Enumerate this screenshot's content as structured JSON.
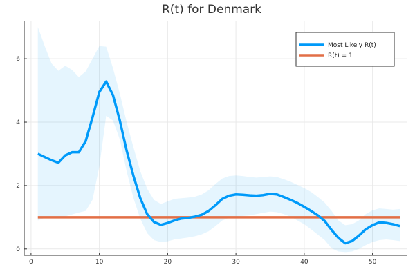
{
  "chart_data": {
    "type": "line",
    "title": "R(t) for Denmark",
    "xlabel": "",
    "ylabel": "",
    "xlim": [
      -1,
      55
    ],
    "ylim": [
      -0.2,
      7.2
    ],
    "xticks": [
      0,
      10,
      20,
      30,
      40,
      50
    ],
    "yticks": [
      0,
      2,
      4,
      6
    ],
    "grid": true,
    "legend_position": "top-right",
    "x": [
      1,
      2,
      3,
      4,
      5,
      6,
      7,
      8,
      9,
      10,
      11,
      12,
      13,
      14,
      15,
      16,
      17,
      18,
      19,
      20,
      21,
      22,
      23,
      24,
      25,
      26,
      27,
      28,
      29,
      30,
      31,
      32,
      33,
      34,
      35,
      36,
      37,
      38,
      39,
      40,
      41,
      42,
      43,
      44,
      45,
      46,
      47,
      48,
      49,
      50,
      51,
      52,
      53,
      54
    ],
    "series": [
      {
        "name": "Most Likely R(t)",
        "color": "#009af9",
        "y": [
          3.0,
          2.9,
          2.8,
          2.72,
          2.95,
          3.05,
          3.05,
          3.4,
          4.15,
          4.95,
          5.28,
          4.85,
          4.05,
          3.1,
          2.3,
          1.6,
          1.1,
          0.85,
          0.76,
          0.82,
          0.9,
          0.96,
          0.98,
          1.02,
          1.08,
          1.2,
          1.38,
          1.58,
          1.68,
          1.72,
          1.71,
          1.69,
          1.68,
          1.7,
          1.74,
          1.72,
          1.64,
          1.55,
          1.45,
          1.33,
          1.2,
          1.06,
          0.88,
          0.6,
          0.35,
          0.18,
          0.25,
          0.42,
          0.62,
          0.75,
          0.84,
          0.82,
          0.78,
          0.72
        ],
        "band_upper": [
          7.0,
          6.4,
          5.85,
          5.62,
          5.78,
          5.65,
          5.42,
          5.6,
          6.0,
          6.4,
          6.38,
          5.7,
          4.9,
          4.0,
          3.2,
          2.45,
          1.9,
          1.55,
          1.42,
          1.5,
          1.58,
          1.6,
          1.62,
          1.65,
          1.72,
          1.85,
          2.05,
          2.22,
          2.3,
          2.32,
          2.3,
          2.27,
          2.25,
          2.27,
          2.29,
          2.27,
          2.2,
          2.12,
          2.02,
          1.92,
          1.8,
          1.64,
          1.46,
          1.2,
          0.9,
          0.75,
          0.78,
          0.9,
          1.1,
          1.22,
          1.28,
          1.26,
          1.24,
          1.26
        ],
        "band_lower": [
          0.9,
          0.98,
          1.02,
          1.0,
          1.03,
          1.09,
          1.15,
          1.2,
          1.55,
          2.6,
          4.2,
          4.05,
          3.45,
          2.45,
          1.6,
          0.95,
          0.5,
          0.28,
          0.22,
          0.24,
          0.3,
          0.33,
          0.36,
          0.4,
          0.46,
          0.56,
          0.72,
          0.9,
          0.98,
          1.02,
          1.04,
          1.06,
          1.1,
          1.14,
          1.18,
          1.16,
          1.1,
          1.02,
          0.9,
          0.78,
          0.62,
          0.45,
          0.28,
          0.02,
          -0.08,
          -0.1,
          -0.08,
          0.0,
          0.12,
          0.22,
          0.28,
          0.3,
          0.28,
          0.25
        ]
      },
      {
        "name": "R(t) = 1",
        "color": "#e26f46",
        "y": [
          1,
          1,
          1,
          1,
          1,
          1,
          1,
          1,
          1,
          1,
          1,
          1,
          1,
          1,
          1,
          1,
          1,
          1,
          1,
          1,
          1,
          1,
          1,
          1,
          1,
          1,
          1,
          1,
          1,
          1,
          1,
          1,
          1,
          1,
          1,
          1,
          1,
          1,
          1,
          1,
          1,
          1,
          1,
          1,
          1,
          1,
          1,
          1,
          1,
          1,
          1,
          1,
          1,
          1
        ]
      }
    ],
    "band_color": "#009af9",
    "band_opacity": 0.1
  }
}
